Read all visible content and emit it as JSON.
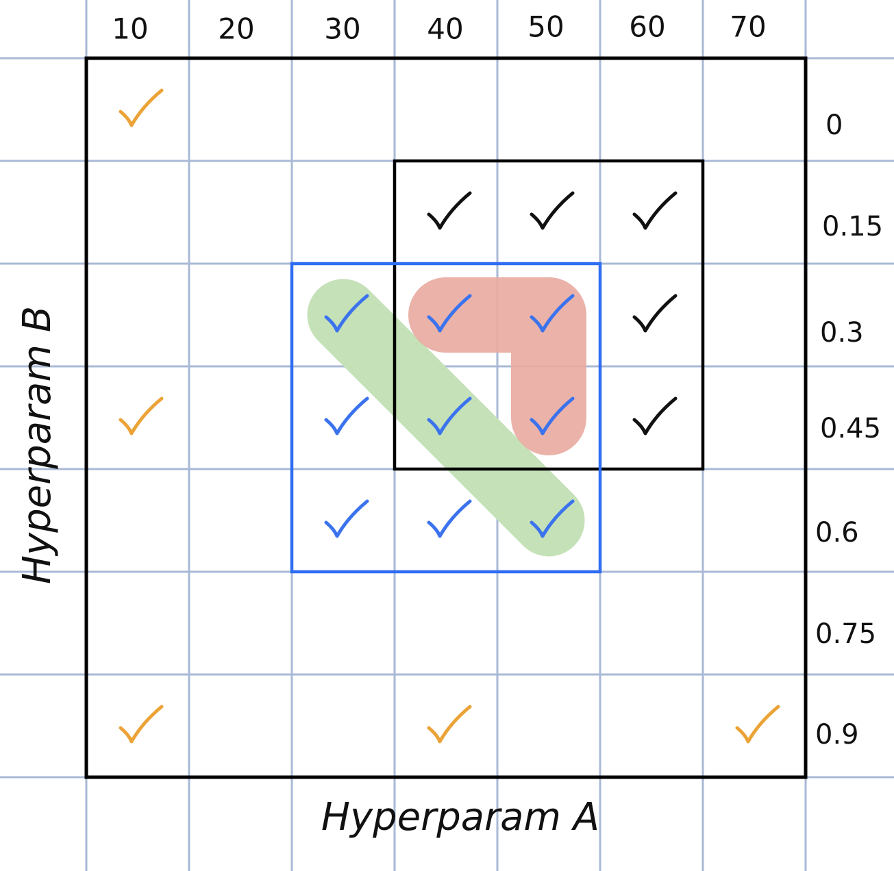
{
  "diagram": {
    "x_axis_title": "Hyperparam A",
    "y_axis_title": "Hyperparam B",
    "columns": [
      "10",
      "20",
      "30",
      "40",
      "50",
      "60",
      "70"
    ],
    "rows": [
      "0",
      "0.15",
      "0.3",
      "0.45",
      "0.6",
      "0.75",
      "0.9"
    ],
    "colors": {
      "grid_line": "#a9b9d6",
      "outer_box": "#000000",
      "black_box": "#000000",
      "blue_box": "#2f6df3",
      "orange_check": "#eba338",
      "black_check": "#111111",
      "blue_check": "#3b73ee",
      "green_highlight": "#c5e1b8",
      "red_highlight": "#e8aba2"
    },
    "checks": [
      {
        "col": 0,
        "row": 0,
        "color": "orange"
      },
      {
        "col": 0,
        "row": 3,
        "color": "orange"
      },
      {
        "col": 0,
        "row": 6,
        "color": "orange"
      },
      {
        "col": 3,
        "row": 6,
        "color": "orange"
      },
      {
        "col": 6,
        "row": 6,
        "color": "orange"
      },
      {
        "col": 3,
        "row": 1,
        "color": "black"
      },
      {
        "col": 4,
        "row": 1,
        "color": "black"
      },
      {
        "col": 5,
        "row": 1,
        "color": "black"
      },
      {
        "col": 5,
        "row": 2,
        "color": "black"
      },
      {
        "col": 5,
        "row": 3,
        "color": "black"
      },
      {
        "col": 2,
        "row": 2,
        "color": "blue"
      },
      {
        "col": 3,
        "row": 2,
        "color": "blue"
      },
      {
        "col": 4,
        "row": 2,
        "color": "blue"
      },
      {
        "col": 2,
        "row": 3,
        "color": "blue"
      },
      {
        "col": 3,
        "row": 3,
        "color": "blue"
      },
      {
        "col": 4,
        "row": 3,
        "color": "blue"
      },
      {
        "col": 2,
        "row": 4,
        "color": "blue"
      },
      {
        "col": 3,
        "row": 4,
        "color": "blue"
      },
      {
        "col": 4,
        "row": 4,
        "color": "blue"
      }
    ],
    "boxes": [
      {
        "name": "full-search-box",
        "col_start": 0,
        "col_end": 6,
        "row_start": 0,
        "row_end": 6,
        "color": "black"
      },
      {
        "name": "black-subgrid-box",
        "col_start": 3,
        "col_end": 5,
        "row_start": 1,
        "row_end": 3,
        "color": "black"
      },
      {
        "name": "blue-subgrid-box",
        "col_start": 2,
        "col_end": 4,
        "row_start": 2,
        "row_end": 4,
        "color": "blue"
      }
    ],
    "highlights": [
      {
        "name": "green-diagonal-highlight",
        "color": "green",
        "cells": [
          [
            2,
            2
          ],
          [
            4,
            4
          ]
        ]
      },
      {
        "name": "red-corner-highlight",
        "color": "red",
        "cells": [
          [
            3,
            2
          ],
          [
            4,
            2
          ],
          [
            4,
            3
          ]
        ]
      }
    ]
  }
}
